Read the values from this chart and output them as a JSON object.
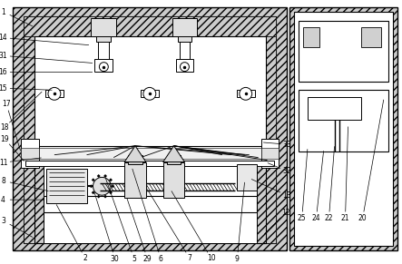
{
  "fig_width": 4.43,
  "fig_height": 2.91,
  "bg_color": "#ffffff",
  "line_color": "#000000",
  "label_font_size": 5.5,
  "leader_lw": 0.5,
  "main_lw": 0.8
}
